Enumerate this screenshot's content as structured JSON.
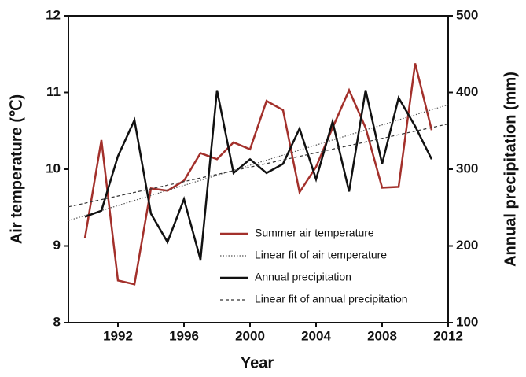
{
  "chart_data": {
    "type": "line",
    "xlabel": "Year",
    "ylabel": "Air temperature (℃)",
    "y2label": "Annual precipitation (mm)",
    "x": [
      1990,
      1991,
      1992,
      1993,
      1994,
      1995,
      1996,
      1997,
      1998,
      1999,
      2000,
      2001,
      2002,
      2003,
      2004,
      2005,
      2006,
      2007,
      2008,
      2009,
      2010,
      2011
    ],
    "xlim": [
      1989,
      2012
    ],
    "xticks": [
      1992,
      1996,
      2000,
      2004,
      2008,
      2012
    ],
    "ylim": [
      8,
      12
    ],
    "yticks": [
      8,
      9,
      10,
      11,
      12
    ],
    "y2lim": [
      100,
      500
    ],
    "y2ticks": [
      100,
      200,
      300,
      400,
      500
    ],
    "legend": "lower-center",
    "series": [
      {
        "name": "Summer air temperature",
        "color": "#a3302b",
        "linestyle": "solid",
        "values": [
          9.1,
          10.38,
          8.55,
          8.5,
          9.75,
          9.72,
          9.85,
          10.21,
          10.13,
          10.35,
          10.26,
          10.89,
          10.77,
          9.7,
          10.03,
          10.54,
          11.03,
          10.54,
          9.76,
          9.77,
          11.38,
          10.51
        ]
      },
      {
        "name": "Linear fit of air temperature",
        "color": "#555555",
        "linestyle": "dotted",
        "x": [
          1989,
          2012
        ],
        "values": [
          9.33,
          10.84
        ]
      },
      {
        "name": "Annual precipitation",
        "color": "#111111",
        "linestyle": "solid",
        "axis": "y2",
        "values": [
          238,
          246,
          317,
          364,
          242,
          205,
          261,
          182,
          403,
          295,
          313,
          295,
          307,
          353,
          287,
          362,
          271,
          403,
          307,
          393,
          356,
          313
        ]
      },
      {
        "name": "Linear fit of annual precipitation",
        "color": "#333333",
        "linestyle": "dashed",
        "axis": "y2",
        "x": [
          1989,
          2012
        ],
        "values": [
          251,
          359
        ]
      }
    ]
  }
}
